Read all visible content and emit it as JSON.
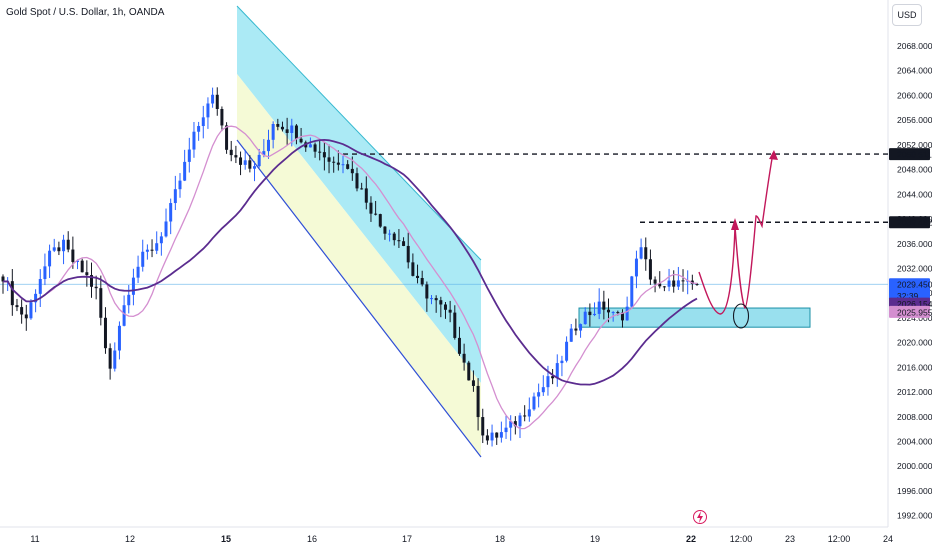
{
  "header": {
    "title": "Gold Spot / U.S. Dollar, 1h, OANDA",
    "currency": "USD"
  },
  "colors": {
    "up": "#2962ff",
    "down": "#131722",
    "ma_fast": "#d48fd0",
    "ma_slow": "#5b2c8f",
    "channel_blue": "#8fe3f2",
    "channel_yellow": "#f4f9d2",
    "zone": "#7fd8ea",
    "path": "#c2185b",
    "price_line": "#5fb2e8"
  },
  "chart_data": {
    "type": "candlestick",
    "ylim": [
      1990,
      2072
    ],
    "y_ticks": [
      "1992.000",
      "1996.000",
      "2000.000",
      "2004.000",
      "2008.000",
      "2012.000",
      "2016.000",
      "2020.000",
      "2024.000",
      "2028.000",
      "2032.000",
      "2036.000",
      "2040.000",
      "2044.000",
      "2048.000",
      "2052.000",
      "2056.000",
      "2060.000",
      "2064.000",
      "2068.000"
    ],
    "x_ticks": [
      {
        "label": "11",
        "bold": false
      },
      {
        "label": "12",
        "bold": false
      },
      {
        "label": "15",
        "bold": true
      },
      {
        "label": "16",
        "bold": false
      },
      {
        "label": "17",
        "bold": false
      },
      {
        "label": "18",
        "bold": false
      },
      {
        "label": "19",
        "bold": false
      },
      {
        "label": "22",
        "bold": true
      },
      {
        "label": "12:00",
        "bold": false
      },
      {
        "label": "23",
        "bold": false
      },
      {
        "label": "12:00",
        "bold": false
      },
      {
        "label": "24",
        "bold": false
      }
    ],
    "price_labels": [
      {
        "text": "2050.511",
        "price": 2050.511,
        "style": "dark"
      },
      {
        "text": "2039.482",
        "price": 2039.482,
        "style": "dark"
      },
      {
        "text": "2029.450",
        "price": 2029.45,
        "style": "blue",
        "sub": "32:39"
      },
      {
        "text": "2026.154",
        "price": 2026.154,
        "style": "purple"
      },
      {
        "text": "2025.955",
        "price": 2025.955,
        "style": "pink"
      }
    ],
    "levels": [
      2050.511,
      2039.482
    ],
    "zone": [
      2022.5,
      2025.6
    ],
    "ohlc_anchor_closes": [
      2031,
      2026,
      2024,
      2030,
      2034,
      2036,
      2033,
      2031,
      2028,
      2015,
      2024,
      2031,
      2034,
      2036,
      2040,
      2046,
      2052,
      2057,
      2060,
      2052,
      2050,
      2048,
      2050,
      2056,
      2055,
      2054,
      2052,
      2051,
      2049,
      2050,
      2046,
      2043,
      2039,
      2038,
      2036,
      2030,
      2028,
      2026,
      2024,
      2018,
      2012,
      2004,
      2005,
      2006,
      2008,
      2011,
      2013,
      2015,
      2020,
      2024,
      2025,
      2026,
      2024,
      2025,
      2036,
      2031,
      2028,
      2030,
      2029,
      2029.45
    ]
  }
}
